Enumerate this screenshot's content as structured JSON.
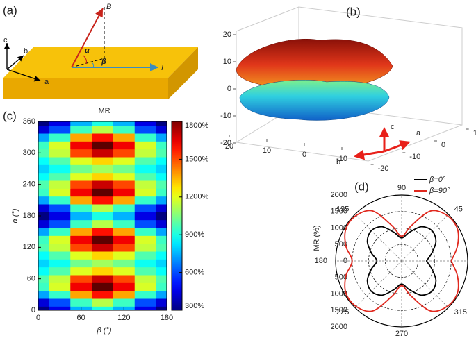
{
  "diagram": {
    "panel": "(a)",
    "labels": {
      "field": "B",
      "alpha": "α",
      "beta": "β",
      "current": "I",
      "a": "a",
      "b": "b",
      "c": "c"
    }
  },
  "chart_data": [
    {
      "type": "surface3d",
      "panel": "(b)",
      "xticks": [
        20,
        10,
        0,
        -10
      ],
      "yticks": [
        10,
        0,
        -10,
        -20
      ],
      "zticks": [
        20,
        10,
        0,
        -10,
        -20
      ],
      "zlim": [
        -20,
        20
      ],
      "axis_labels": [
        "a",
        "b",
        "c"
      ]
    },
    {
      "type": "heatmap",
      "panel": "(c)",
      "title": "MR",
      "xlabel": "β (°)",
      "ylabel": "α (°)",
      "x": [
        0,
        30,
        60,
        90,
        120,
        150,
        180
      ],
      "y": [
        0,
        15,
        30,
        45,
        60,
        75,
        90,
        105,
        120,
        135,
        150,
        165,
        180,
        195,
        210,
        225,
        240,
        255,
        270,
        285,
        300,
        315,
        330,
        345,
        360
      ],
      "values": [
        [
          300,
          450,
          750,
          900,
          750,
          450,
          300
        ],
        [
          430,
          600,
          950,
          1130,
          950,
          600,
          430
        ],
        [
          730,
          940,
          1370,
          1590,
          1370,
          940,
          730
        ],
        [
          950,
          1180,
          1630,
          1850,
          1630,
          1180,
          950
        ],
        [
          980,
          1150,
          1510,
          1690,
          1510,
          1150,
          980
        ],
        [
          870,
          980,
          1190,
          1300,
          1190,
          980,
          870
        ],
        [
          800,
          880,
          1030,
          1100,
          1030,
          880,
          800
        ],
        [
          870,
          980,
          1190,
          1300,
          1190,
          980,
          870
        ],
        [
          980,
          1150,
          1510,
          1690,
          1510,
          1150,
          980
        ],
        [
          950,
          1180,
          1630,
          1850,
          1630,
          1180,
          950
        ],
        [
          730,
          940,
          1370,
          1590,
          1370,
          940,
          730
        ],
        [
          430,
          600,
          950,
          1130,
          950,
          600,
          430
        ],
        [
          300,
          450,
          750,
          900,
          750,
          450,
          300
        ],
        [
          430,
          600,
          950,
          1130,
          950,
          600,
          430
        ],
        [
          730,
          940,
          1370,
          1590,
          1370,
          940,
          730
        ],
        [
          950,
          1180,
          1630,
          1850,
          1630,
          1180,
          950
        ],
        [
          980,
          1150,
          1510,
          1690,
          1510,
          1150,
          980
        ],
        [
          870,
          980,
          1190,
          1300,
          1190,
          980,
          870
        ],
        [
          800,
          880,
          1030,
          1100,
          1030,
          880,
          800
        ],
        [
          870,
          980,
          1190,
          1300,
          1190,
          980,
          870
        ],
        [
          980,
          1150,
          1510,
          1690,
          1510,
          1150,
          980
        ],
        [
          950,
          1180,
          1630,
          1850,
          1630,
          1180,
          950
        ],
        [
          730,
          940,
          1370,
          1590,
          1370,
          940,
          730
        ],
        [
          430,
          600,
          950,
          1130,
          950,
          600,
          430
        ],
        [
          300,
          450,
          750,
          900,
          750,
          450,
          300
        ]
      ],
      "xlim": [
        0,
        180
      ],
      "ylim": [
        0,
        360
      ],
      "xticks": [
        0,
        60,
        120,
        180
      ],
      "yticks": [
        0,
        60,
        120,
        180,
        240,
        300,
        360
      ],
      "colormap": "jet",
      "clim": [
        300,
        1800
      ],
      "cticks": [
        {
          "value": 300,
          "label": "300%"
        },
        {
          "value": 600,
          "label": "600%"
        },
        {
          "value": 900,
          "label": "900%"
        },
        {
          "value": 1200,
          "label": "1200%"
        },
        {
          "value": 1500,
          "label": "1500%"
        },
        {
          "value": 1800,
          "label": "1800%"
        }
      ]
    },
    {
      "type": "polar",
      "panel": "(d)",
      "ylabel": "MR (%)",
      "theta": [
        0,
        15,
        30,
        45,
        60,
        75,
        90,
        105,
        120,
        135,
        150,
        165,
        180,
        195,
        210,
        225,
        240,
        255,
        270,
        285,
        300,
        315,
        330,
        345,
        360
      ],
      "rlim": [
        0,
        2000
      ],
      "rticks": [
        0,
        500,
        1000,
        1500,
        2000
      ],
      "thetaticks": [
        0,
        45,
        90,
        135,
        180,
        225,
        270,
        315
      ],
      "legend": "upper right",
      "series": [
        {
          "name": "β=0°",
          "color": "#000000",
          "values": [
            750,
            950,
            1200,
            1300,
            1200,
            900,
            700,
            900,
            1200,
            1300,
            1200,
            950,
            750,
            950,
            1200,
            1300,
            1200,
            900,
            700,
            900,
            1200,
            1300,
            1200,
            950,
            750
          ]
        },
        {
          "name": "β=90°",
          "color": "#e0281e",
          "values": [
            1500,
            1750,
            1950,
            1950,
            1750,
            1100,
            750,
            1100,
            1750,
            1950,
            1950,
            1750,
            1500,
            1750,
            1950,
            1950,
            1750,
            1100,
            750,
            1100,
            1750,
            1950,
            1950,
            1750,
            1500
          ]
        }
      ]
    }
  ]
}
